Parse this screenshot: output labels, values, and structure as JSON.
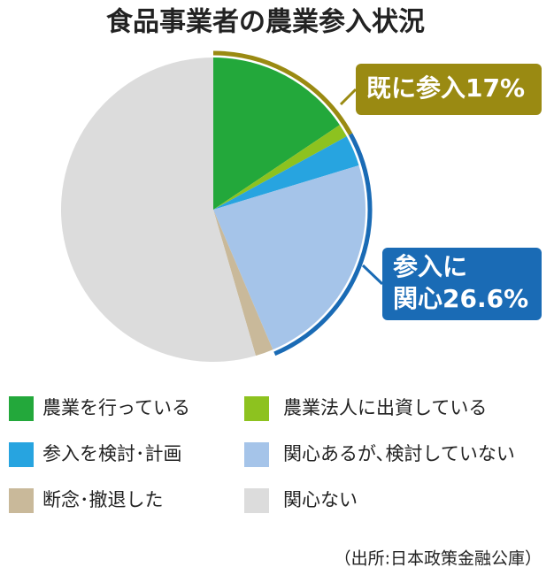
{
  "chart_data": {
    "type": "pie",
    "title": "食品事業者の農業参入状況",
    "categories": [
      "農業を行っている",
      "農業法人に出資している",
      "参入を検討･計画",
      "関心あるが､検討していない",
      "断念･撤退した",
      "関心ない"
    ],
    "values": [
      15.6,
      1.4,
      3.3,
      23.3,
      1.9,
      54.5
    ],
    "colors": [
      "#23a83b",
      "#8dc21f",
      "#27a4e0",
      "#a5c4e9",
      "#c9b99a",
      "#dcdcdc"
    ],
    "callouts": [
      {
        "lines": [
          "既に参入17%"
        ],
        "color": "#9a8a12"
      },
      {
        "lines": [
          "参入に",
          "関心26.6%"
        ],
        "color": "#1a6bb5"
      }
    ],
    "source": "（出所:日本政策金融公庫）"
  }
}
